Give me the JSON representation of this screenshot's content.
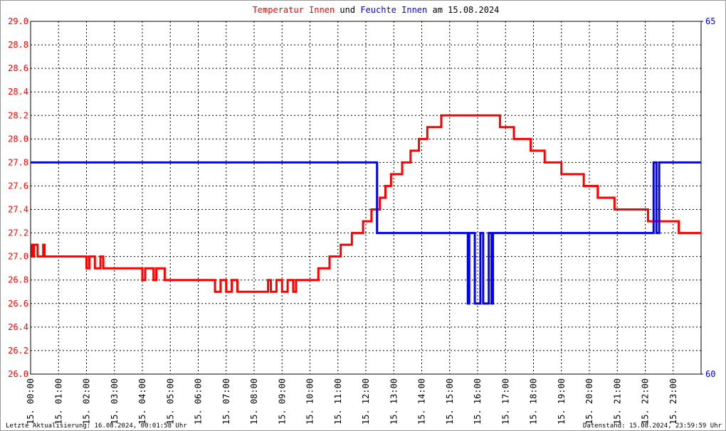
{
  "chart_data": {
    "type": "line",
    "title_connector": "und",
    "title_date": "am 15.08.2024",
    "xlim": [
      0,
      24
    ],
    "xticks": [
      {
        "value": 0,
        "label": "15. 00:00"
      },
      {
        "value": 1,
        "label": "15. 01:00"
      },
      {
        "value": 2,
        "label": "15. 02:00"
      },
      {
        "value": 3,
        "label": "15. 03:00"
      },
      {
        "value": 4,
        "label": "15. 04:00"
      },
      {
        "value": 5,
        "label": "15. 05:00"
      },
      {
        "value": 6,
        "label": "15. 06:00"
      },
      {
        "value": 7,
        "label": "15. 07:00"
      },
      {
        "value": 8,
        "label": "15. 08:00"
      },
      {
        "value": 9,
        "label": "15. 09:00"
      },
      {
        "value": 10,
        "label": "15. 10:00"
      },
      {
        "value": 11,
        "label": "15. 11:00"
      },
      {
        "value": 12,
        "label": "15. 12:00"
      },
      {
        "value": 13,
        "label": "15. 13:00"
      },
      {
        "value": 14,
        "label": "15. 14:00"
      },
      {
        "value": 15,
        "label": "15. 15:00"
      },
      {
        "value": 16,
        "label": "15. 16:00"
      },
      {
        "value": 17,
        "label": "15. 17:00"
      },
      {
        "value": 18,
        "label": "15. 18:00"
      },
      {
        "value": 19,
        "label": "15. 19:00"
      },
      {
        "value": 20,
        "label": "15. 20:00"
      },
      {
        "value": 21,
        "label": "15. 21:00"
      },
      {
        "value": 22,
        "label": "15. 22:00"
      },
      {
        "value": 23,
        "label": "15. 23:00"
      }
    ],
    "ylim": [
      26,
      29
    ],
    "yticks": [
      {
        "value": 26,
        "label": "26.0"
      },
      26.2,
      26.4,
      26.6,
      26.8,
      {
        "value": 27,
        "label": "27.0"
      },
      27.2,
      27.4,
      27.6,
      27.8,
      {
        "value": 28,
        "label": "28.0"
      },
      28.2,
      28.4,
      28.6,
      28.8,
      {
        "value": 29,
        "label": "29.0"
      }
    ],
    "y2lim": [
      60,
      65
    ],
    "y2ticks": [
      60,
      65
    ],
    "grid": true,
    "series": [
      {
        "name": "Temperatur Innen",
        "color": "#ff0000",
        "x": [
          0,
          0.05,
          0.05,
          0.12,
          0.12,
          0.25,
          0.25,
          0.45,
          0.45,
          0.5,
          0.5,
          2.0,
          2.0,
          2.1,
          2.1,
          2.3,
          2.3,
          2.5,
          2.5,
          2.6,
          2.6,
          4.0,
          4.0,
          4.1,
          4.1,
          4.4,
          4.4,
          4.5,
          4.5,
          4.8,
          4.8,
          6.6,
          6.6,
          6.8,
          6.8,
          7.0,
          7.0,
          7.2,
          7.2,
          7.4,
          7.4,
          8.5,
          8.5,
          8.6,
          8.6,
          8.8,
          8.8,
          9.0,
          9.0,
          9.2,
          9.2,
          9.4,
          9.4,
          9.5,
          9.5,
          10.3,
          10.3,
          10.7,
          10.7,
          11.1,
          11.1,
          11.5,
          11.5,
          11.9,
          11.9,
          12.2,
          12.2,
          12.5,
          12.5,
          12.7,
          12.7,
          12.9,
          12.9,
          13.3,
          13.3,
          13.6,
          13.6,
          13.9,
          13.9,
          14.2,
          14.2,
          14.7,
          14.7,
          16.8,
          16.8,
          17.3,
          17.3,
          17.9,
          17.9,
          18.4,
          18.4,
          19.0,
          19.0,
          19.8,
          19.8,
          20.3,
          20.3,
          20.9,
          20.9,
          22.1,
          22.1,
          23.2,
          23.2,
          24
        ],
        "values": [
          27.1,
          27.1,
          27.0,
          27.0,
          27.1,
          27.1,
          27.0,
          27.0,
          27.1,
          27.1,
          27.0,
          27.0,
          26.9,
          26.9,
          27.0,
          27.0,
          26.9,
          26.9,
          27.0,
          27.0,
          26.9,
          26.9,
          26.8,
          26.8,
          26.9,
          26.9,
          26.8,
          26.8,
          26.9,
          26.9,
          26.8,
          26.8,
          26.7,
          26.7,
          26.8,
          26.8,
          26.7,
          26.7,
          26.8,
          26.8,
          26.7,
          26.7,
          26.8,
          26.8,
          26.7,
          26.7,
          26.8,
          26.8,
          26.7,
          26.7,
          26.8,
          26.8,
          26.7,
          26.7,
          26.8,
          26.8,
          26.9,
          26.9,
          27.0,
          27.0,
          27.1,
          27.1,
          27.2,
          27.2,
          27.3,
          27.3,
          27.4,
          27.4,
          27.5,
          27.5,
          27.6,
          27.6,
          27.7,
          27.7,
          27.8,
          27.8,
          27.9,
          27.9,
          28.0,
          28.0,
          28.1,
          28.1,
          28.2,
          28.2,
          28.1,
          28.1,
          28.0,
          28.0,
          27.9,
          27.9,
          27.8,
          27.8,
          27.7,
          27.7,
          27.6,
          27.6,
          27.5,
          27.5,
          27.4,
          27.4,
          27.3,
          27.3,
          27.2,
          27.2
        ]
      },
      {
        "name": "Feuchte Innen",
        "color": "#0000ff",
        "axis": "y2",
        "x": [
          0,
          12.4,
          12.4,
          15.65,
          15.65,
          15.7,
          15.7,
          15.9,
          15.9,
          16.1,
          16.1,
          16.2,
          16.2,
          16.4,
          16.4,
          16.5,
          16.5,
          16.55,
          16.55,
          22.3,
          22.3,
          22.4,
          22.4,
          22.5,
          22.5,
          24
        ],
        "values": [
          63,
          63,
          62,
          62,
          61,
          61,
          62,
          62,
          61,
          61,
          62,
          62,
          61,
          61,
          62,
          62,
          61,
          61,
          62,
          62,
          63,
          63,
          62,
          62,
          63,
          63
        ]
      }
    ],
    "footer_left": "Letzte Aktualisierung: 16.08.2024, 00:01:58 Uhr",
    "footer_right": "Datenstand: 15.08.2024, 23:59:59 Uhr"
  }
}
